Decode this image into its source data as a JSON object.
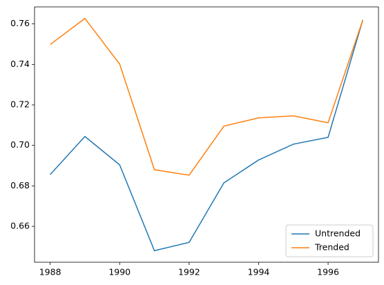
{
  "chart_data": {
    "type": "line",
    "x": [
      1988,
      1989,
      1990,
      1991,
      1992,
      1993,
      1994,
      1995,
      1996,
      1997
    ],
    "series": [
      {
        "name": "Untrended",
        "color": "#1f77b4",
        "values": [
          0.6856,
          0.7044,
          0.6904,
          0.648,
          0.6521,
          0.6815,
          0.6928,
          0.7006,
          0.704,
          0.762
        ]
      },
      {
        "name": "Trended",
        "color": "#ff7f0e",
        "values": [
          0.7498,
          0.7627,
          0.7402,
          0.688,
          0.6853,
          0.7095,
          0.7136,
          0.7146,
          0.7112,
          0.762
        ]
      }
    ],
    "xlim": [
      1987.55,
      1997.45
    ],
    "xticks": [
      1988,
      1990,
      1992,
      1994,
      1996
    ],
    "ylim": [
      0.6423,
      0.7684
    ],
    "yticks": [
      0.66,
      0.68,
      {
        "value": 0.7,
        "label": "0.70"
      },
      0.72,
      0.74,
      0.76
    ],
    "legend": "lower right"
  }
}
